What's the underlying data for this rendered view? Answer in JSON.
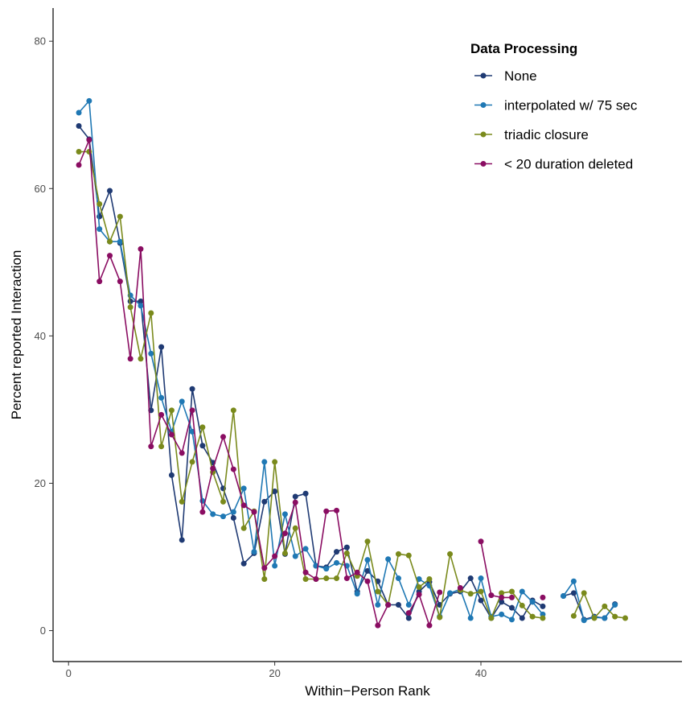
{
  "chart_data": {
    "type": "line",
    "xlabel": "Within−Person Rank",
    "ylabel": "Percent reported Interaction",
    "xlim": [
      -1.5,
      59.5
    ],
    "ylim": [
      -4.2,
      84.5
    ],
    "xticks": [
      0,
      20,
      40
    ],
    "yticks": [
      0,
      20,
      40,
      60,
      80
    ],
    "grid": false,
    "legend": {
      "title": "Data Processing",
      "position": "top-right"
    },
    "series": [
      {
        "name": "None",
        "color": "#1f3a73",
        "points": [
          [
            1,
            68.5
          ],
          [
            2,
            66.7
          ],
          [
            3,
            56.2
          ],
          [
            4,
            59.7
          ],
          [
            5,
            52.6
          ],
          [
            6,
            44.7
          ],
          [
            7,
            44.7
          ],
          [
            8,
            29.9
          ],
          [
            9,
            38.5
          ],
          [
            10,
            21.1
          ],
          [
            11,
            12.3
          ],
          [
            12,
            32.8
          ],
          [
            13,
            25.1
          ],
          [
            14,
            22.8
          ],
          [
            15,
            19.3
          ],
          [
            16,
            15.3
          ],
          [
            17,
            9.1
          ],
          [
            18,
            10.5
          ],
          [
            19,
            17.5
          ],
          [
            20,
            18.9
          ],
          [
            21,
            10.4
          ],
          [
            22,
            18.2
          ],
          [
            23,
            18.6
          ],
          [
            24,
            8.8
          ],
          [
            25,
            8.6
          ],
          [
            26,
            10.7
          ],
          [
            27,
            11.3
          ],
          [
            28,
            5.3
          ],
          [
            29,
            8.1
          ],
          [
            30,
            6.7
          ],
          [
            31,
            3.5
          ],
          [
            32,
            3.5
          ],
          [
            33,
            1.7
          ],
          [
            34,
            5.3
          ],
          [
            35,
            6.6
          ],
          [
            36,
            3.5
          ],
          [
            37,
            5.0
          ],
          [
            38,
            5.3
          ],
          [
            39,
            7.1
          ],
          [
            40,
            4.1
          ],
          [
            41,
            1.7
          ],
          [
            42,
            3.9
          ],
          [
            43,
            3.1
          ],
          [
            44,
            1.7
          ],
          [
            45,
            4.1
          ],
          [
            46,
            3.3
          ],
          [
            48,
            4.7
          ],
          [
            49,
            5.1
          ],
          [
            50,
            1.5
          ],
          [
            51,
            1.9
          ],
          [
            52,
            1.7
          ],
          [
            53,
            3.6
          ]
        ]
      },
      {
        "name": "interpolated w/ 75 sec",
        "color": "#1f78b4",
        "points": [
          [
            1,
            70.3
          ],
          [
            2,
            71.9
          ],
          [
            3,
            54.5
          ],
          [
            4,
            52.8
          ],
          [
            5,
            52.8
          ],
          [
            6,
            45.5
          ],
          [
            7,
            44.1
          ],
          [
            8,
            37.6
          ],
          [
            9,
            31.6
          ],
          [
            10,
            27.0
          ],
          [
            11,
            31.1
          ],
          [
            12,
            27.0
          ],
          [
            13,
            17.6
          ],
          [
            14,
            15.8
          ],
          [
            15,
            15.5
          ],
          [
            16,
            16.1
          ],
          [
            17,
            19.3
          ],
          [
            18,
            10.7
          ],
          [
            19,
            22.9
          ],
          [
            20,
            8.8
          ],
          [
            21,
            15.8
          ],
          [
            22,
            10.1
          ],
          [
            23,
            11.1
          ],
          [
            24,
            8.8
          ],
          [
            25,
            8.4
          ],
          [
            26,
            9.2
          ],
          [
            27,
            8.8
          ],
          [
            28,
            5.0
          ],
          [
            29,
            9.6
          ],
          [
            30,
            3.5
          ],
          [
            31,
            9.7
          ],
          [
            32,
            7.1
          ],
          [
            33,
            3.5
          ],
          [
            34,
            7.0
          ],
          [
            35,
            6.1
          ],
          [
            36,
            1.9
          ],
          [
            37,
            5.1
          ],
          [
            38,
            5.6
          ],
          [
            39,
            1.7
          ],
          [
            40,
            7.1
          ],
          [
            41,
            1.9
          ],
          [
            42,
            2.2
          ],
          [
            43,
            1.5
          ],
          [
            44,
            5.3
          ],
          [
            45,
            3.9
          ],
          [
            46,
            2.2
          ],
          [
            48,
            4.7
          ],
          [
            49,
            6.7
          ],
          [
            50,
            1.4
          ],
          [
            51,
            1.8
          ],
          [
            52,
            1.7
          ],
          [
            53,
            3.5
          ]
        ]
      },
      {
        "name": "triadic closure",
        "color": "#7a8a1c",
        "points": [
          [
            1,
            65.0
          ],
          [
            2,
            65.0
          ],
          [
            3,
            57.9
          ],
          [
            4,
            52.8
          ],
          [
            5,
            56.2
          ],
          [
            6,
            43.9
          ],
          [
            7,
            36.9
          ],
          [
            8,
            43.1
          ],
          [
            9,
            25.0
          ],
          [
            10,
            29.9
          ],
          [
            11,
            17.5
          ],
          [
            12,
            22.9
          ],
          [
            13,
            27.6
          ],
          [
            14,
            21.5
          ],
          [
            15,
            17.5
          ],
          [
            16,
            29.9
          ],
          [
            17,
            13.9
          ],
          [
            18,
            16.2
          ],
          [
            19,
            7.0
          ],
          [
            20,
            22.9
          ],
          [
            21,
            10.5
          ],
          [
            22,
            13.9
          ],
          [
            23,
            7.0
          ],
          [
            24,
            7.0
          ],
          [
            25,
            7.1
          ],
          [
            26,
            7.1
          ],
          [
            27,
            10.5
          ],
          [
            28,
            7.4
          ],
          [
            29,
            12.1
          ],
          [
            30,
            5.3
          ],
          [
            31,
            3.5
          ],
          [
            32,
            10.4
          ],
          [
            33,
            10.2
          ],
          [
            34,
            5.9
          ],
          [
            35,
            7.0
          ],
          [
            36,
            1.8
          ],
          [
            37,
            10.4
          ],
          [
            38,
            5.5
          ],
          [
            39,
            5.0
          ],
          [
            40,
            5.3
          ],
          [
            41,
            1.7
          ],
          [
            42,
            5.1
          ],
          [
            43,
            5.3
          ],
          [
            44,
            3.4
          ],
          [
            45,
            1.9
          ],
          [
            46,
            1.7
          ],
          [
            49,
            2.0
          ],
          [
            50,
            5.1
          ],
          [
            51,
            1.7
          ],
          [
            52,
            3.3
          ],
          [
            53,
            1.9
          ],
          [
            54,
            1.7
          ]
        ]
      },
      {
        "name": "< 20 duration deleted",
        "color": "#8a0d62",
        "points": [
          [
            1,
            63.2
          ],
          [
            2,
            66.6
          ],
          [
            3,
            47.4
          ],
          [
            4,
            50.9
          ],
          [
            5,
            47.4
          ],
          [
            6,
            36.9
          ],
          [
            7,
            51.8
          ],
          [
            8,
            25.0
          ],
          [
            9,
            29.3
          ],
          [
            10,
            26.6
          ],
          [
            11,
            24.1
          ],
          [
            12,
            29.9
          ],
          [
            13,
            16.1
          ],
          [
            14,
            22.0
          ],
          [
            15,
            26.3
          ],
          [
            16,
            21.9
          ],
          [
            17,
            17.0
          ],
          [
            18,
            16.1
          ],
          [
            19,
            8.5
          ],
          [
            20,
            10.1
          ],
          [
            21,
            13.2
          ],
          [
            22,
            17.4
          ],
          [
            23,
            7.9
          ],
          [
            24,
            7.0
          ],
          [
            25,
            16.2
          ],
          [
            26,
            16.3
          ],
          [
            27,
            7.1
          ],
          [
            28,
            7.9
          ],
          [
            29,
            6.7
          ],
          [
            30,
            0.7
          ],
          [
            31,
            3.5
          ],
          [
            33,
            2.4
          ],
          [
            34,
            4.9
          ],
          [
            35,
            0.7
          ],
          [
            36,
            5.2
          ],
          [
            38,
            5.8
          ],
          [
            40,
            12.1
          ],
          [
            41,
            4.8
          ],
          [
            42,
            4.5
          ],
          [
            43,
            4.5
          ],
          [
            46,
            4.5
          ]
        ]
      }
    ]
  }
}
